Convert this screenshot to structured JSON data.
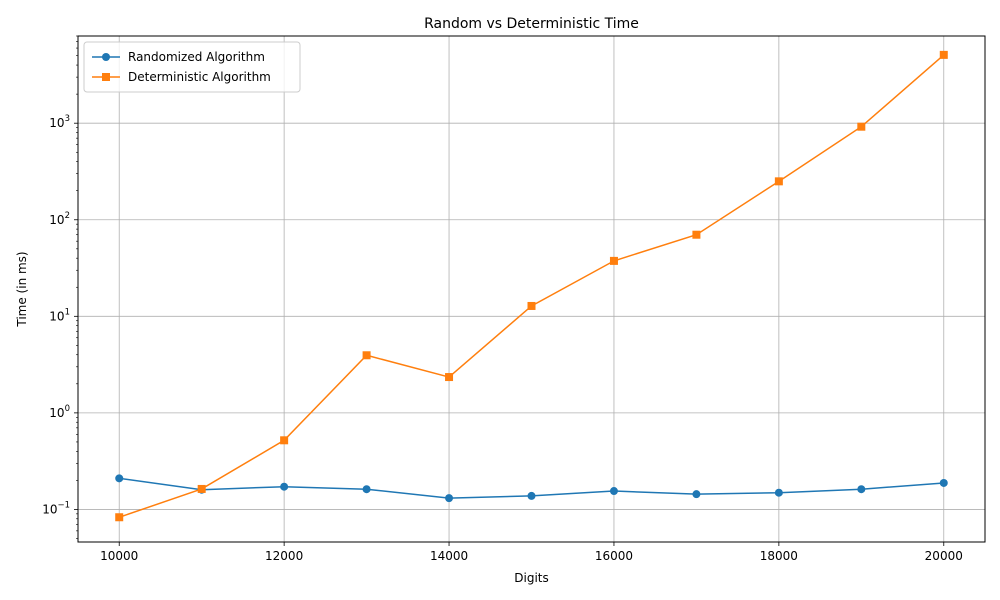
{
  "chart_data": {
    "type": "line",
    "title": "Random vs Deterministic Time",
    "xlabel": "Digits",
    "ylabel": "Time (in ms)",
    "yscale": "log",
    "x": [
      10000,
      11000,
      12000,
      13000,
      14000,
      15000,
      16000,
      17000,
      18000,
      19000,
      20000
    ],
    "xlim": [
      9500,
      20500
    ],
    "ylim": [
      0.046,
      8000
    ],
    "xticks": [
      10000,
      12000,
      14000,
      16000,
      18000,
      20000
    ],
    "xtick_labels": [
      "10000",
      "12000",
      "14000",
      "16000",
      "18000",
      "20000"
    ],
    "yticks": [
      0.1,
      1,
      10,
      100,
      1000
    ],
    "ytick_labels": [
      {
        "base": "10",
        "exp": "−1"
      },
      {
        "base": "10",
        "exp": "0"
      },
      {
        "base": "10",
        "exp": "1"
      },
      {
        "base": "10",
        "exp": "2"
      },
      {
        "base": "10",
        "exp": "3"
      }
    ],
    "grid": true,
    "legend_position": "top-left",
    "series": [
      {
        "name": "Randomized Algorithm",
        "color": "#1f77b4",
        "marker": "circle",
        "values": [
          0.21,
          0.16,
          0.172,
          0.162,
          0.131,
          0.138,
          0.155,
          0.144,
          0.149,
          0.162,
          0.188
        ]
      },
      {
        "name": "Deterministic Algorithm",
        "color": "#ff7f0e",
        "marker": "square",
        "values": [
          0.083,
          0.163,
          0.52,
          3.95,
          2.35,
          12.8,
          37.5,
          70.0,
          250.0,
          920.0,
          5100.0
        ]
      }
    ]
  }
}
